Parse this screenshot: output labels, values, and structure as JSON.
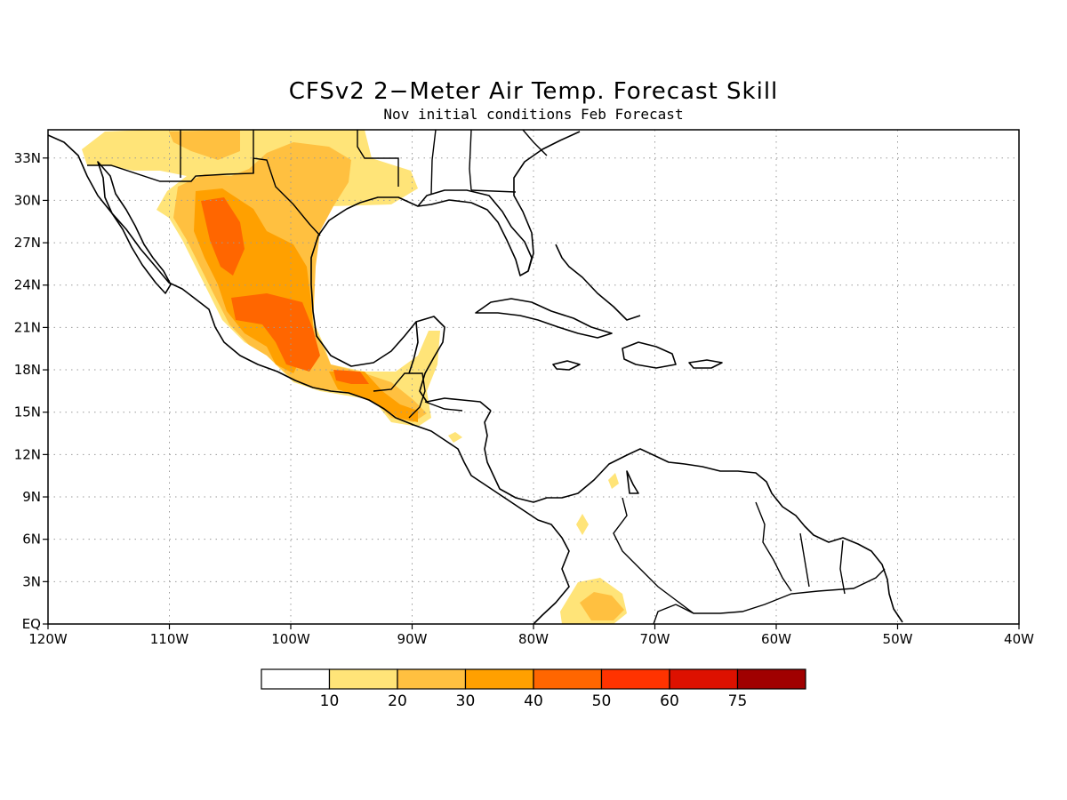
{
  "title": "CFSv2 2−Meter Air Temp. Forecast Skill",
  "subtitle": "Nov initial conditions  Feb Forecast",
  "x_ticks": [
    "120W",
    "110W",
    "100W",
    "90W",
    "80W",
    "70W",
    "60W",
    "50W",
    "40W"
  ],
  "y_ticks": [
    "EQ",
    "3N",
    "6N",
    "9N",
    "12N",
    "15N",
    "18N",
    "21N",
    "24N",
    "27N",
    "30N",
    "33N"
  ],
  "colorbar": {
    "labels": [
      "10",
      "20",
      "30",
      "40",
      "50",
      "60",
      "75"
    ],
    "colors": [
      "#ffffff",
      "#ffe478",
      "#ffc040",
      "#ffa000",
      "#ff6600",
      "#ff3300",
      "#dd1100",
      "#a00000"
    ]
  },
  "chart_data": {
    "type": "heatmap",
    "lon_range": [
      -120,
      -40
    ],
    "lat_range": [
      0,
      35
    ],
    "grid_lines": true,
    "legend_placement": "bottom"
  }
}
